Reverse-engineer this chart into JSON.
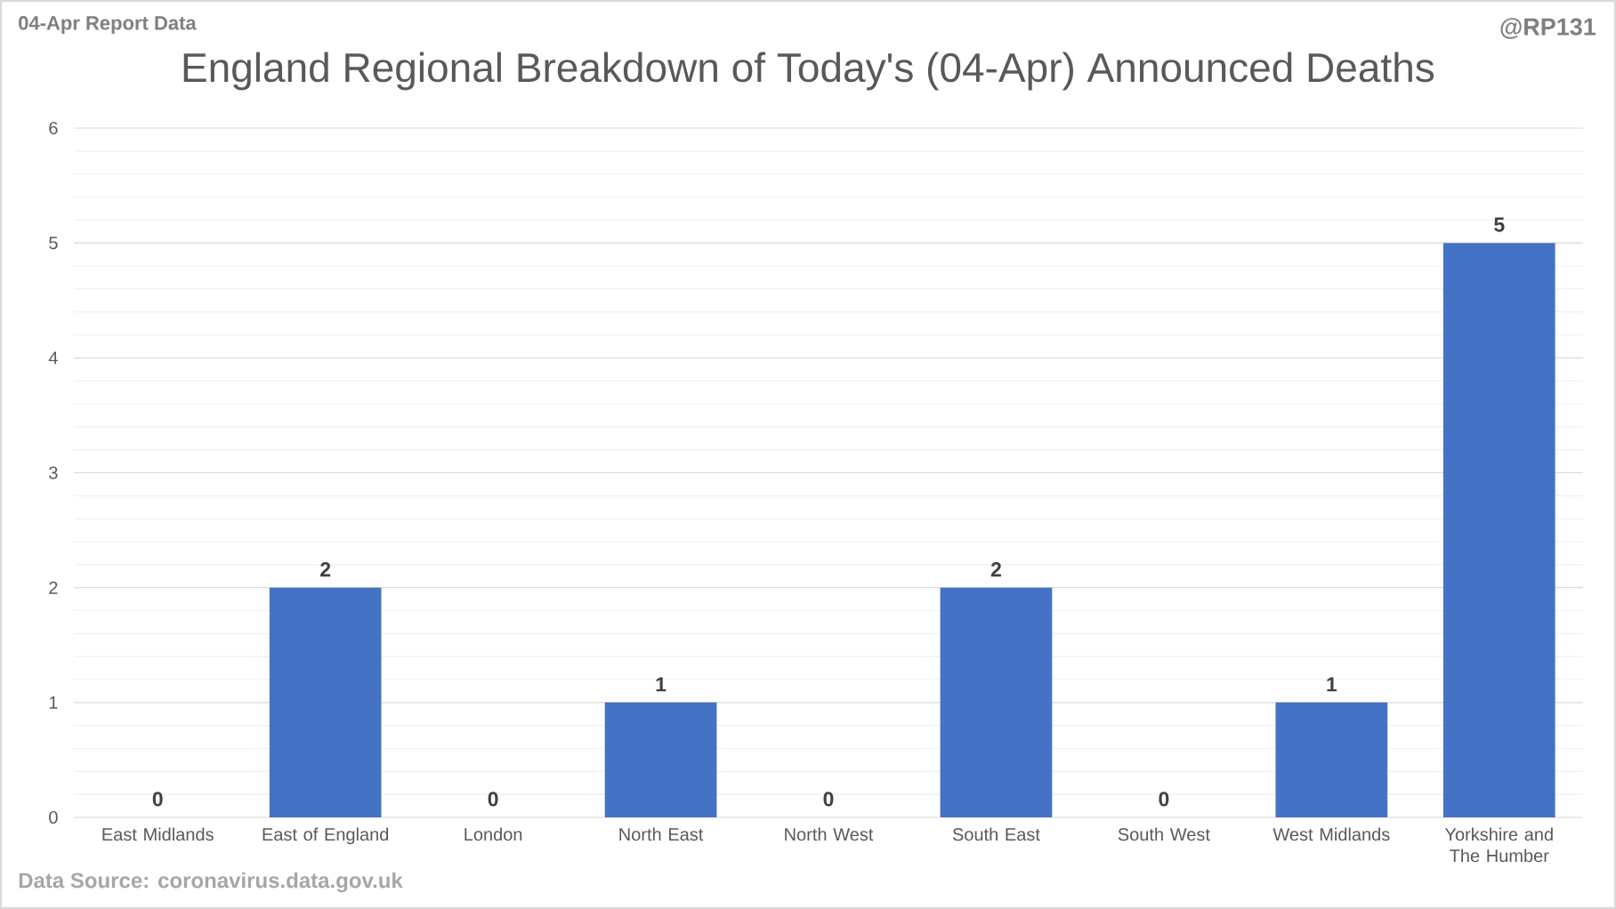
{
  "chart_data": {
    "type": "bar",
    "title": "England Regional Breakdown of Today's (04-Apr) Announced Deaths",
    "categories": [
      "East Midlands",
      "East of England",
      "London",
      "North East",
      "North West",
      "South East",
      "South West",
      "West Midlands",
      "Yorkshire and The Humber"
    ],
    "values": [
      0,
      2,
      0,
      1,
      0,
      2,
      0,
      1,
      5
    ],
    "color": "#4472c4",
    "ylim": [
      0,
      6
    ],
    "yticks": [
      0,
      1,
      2,
      3,
      4,
      5,
      6
    ],
    "grid": "y",
    "data_labels": true,
    "annotations": [
      "04-Apr Report Data",
      "@RP131",
      "Data Source: coronavirus.data.gov.uk"
    ]
  }
}
